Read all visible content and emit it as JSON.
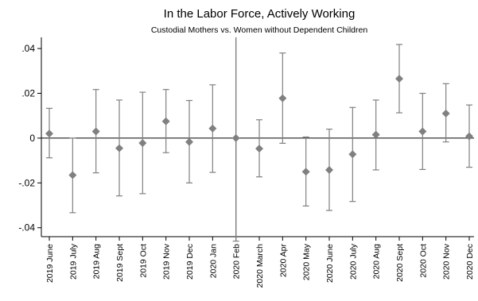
{
  "chart_data": {
    "type": "scatter",
    "title": "In the Labor Force, Actively Working",
    "subtitle": "Custodial Mothers vs. Women without Dependent Children",
    "xlabel": "",
    "ylabel": "",
    "ylim": [
      -0.044,
      0.045
    ],
    "yticks": [
      -0.04,
      -0.02,
      0,
      0.02,
      0.04
    ],
    "ytick_labels": [
      "-.04",
      "-.02",
      "0",
      ".02",
      ".04"
    ],
    "reference_line_y": 0,
    "reference_line_x_category": "2020 Feb",
    "grid": false,
    "colors": {
      "marker": "#808080",
      "error_bar": "#808080",
      "axis": "#000000",
      "zero_line": "#000000",
      "vertical_line": "#808080"
    },
    "categories": [
      "2019 June",
      "2019 July",
      "2019 Aug",
      "2019 Sept",
      "2019 Oct",
      "2019 Nov",
      "2019 Dec",
      "2020 Jan",
      "2020 Feb",
      "2020 March",
      "2020 Apr",
      "2020 May",
      "2020 June",
      "2020 July",
      "2020 Aug",
      "2020 Sept",
      "2020 Oct",
      "2020 Nov",
      "2020 Dec"
    ],
    "estimates": [
      0.002,
      -0.0165,
      0.003,
      -0.0045,
      -0.0022,
      0.0075,
      -0.0017,
      0.0043,
      0.0,
      -0.0047,
      0.0178,
      -0.015,
      -0.0142,
      -0.0072,
      0.0015,
      0.0265,
      0.003,
      0.011,
      0.0008
    ],
    "lower": [
      -0.0088,
      -0.0333,
      -0.0155,
      -0.0258,
      -0.0248,
      -0.0065,
      -0.02,
      -0.0153,
      -0.046,
      -0.0173,
      -0.0023,
      -0.0303,
      -0.0323,
      -0.0283,
      -0.0142,
      0.0113,
      -0.014,
      -0.0017,
      -0.013
    ],
    "upper": [
      0.0133,
      0.0,
      0.0217,
      0.017,
      0.0205,
      0.0217,
      0.0168,
      0.0238,
      0.0,
      0.0082,
      0.038,
      0.0005,
      0.004,
      0.0137,
      0.017,
      0.0418,
      0.02,
      0.0243,
      0.0148
    ]
  }
}
